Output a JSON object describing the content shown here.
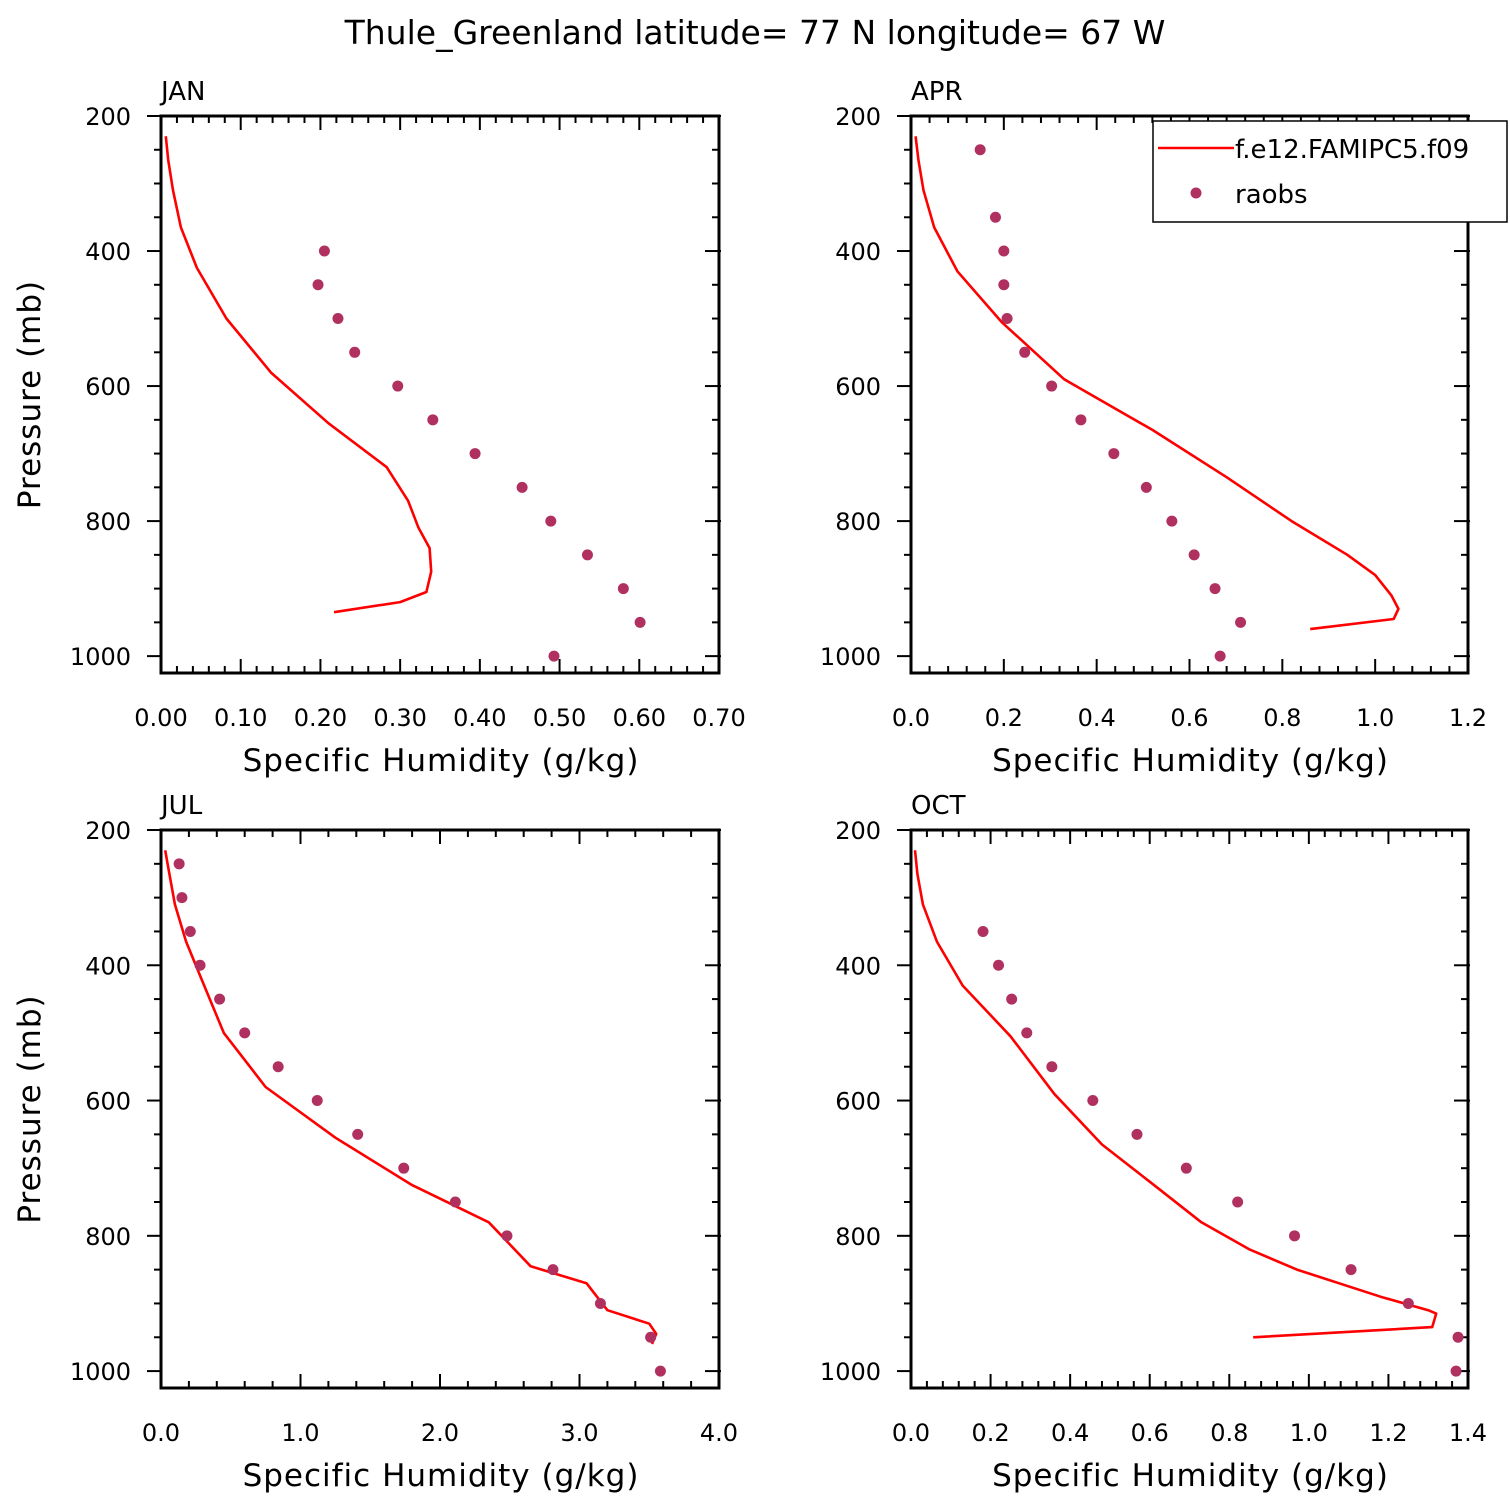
{
  "figure": {
    "title": "Thule_Greenland  latitude= 77 N longitude= 67 W",
    "legend": {
      "entries": [
        {
          "label": "f.e12.FAMIPC5.f09",
          "style": "line",
          "color": "#ff0000"
        },
        {
          "label": "raobs",
          "style": "dot",
          "color": "#b03060"
        }
      ]
    },
    "colors": {
      "model": "#ff0000",
      "obs": "#b03060",
      "axis": "#000000"
    }
  },
  "chart_data": [
    {
      "type": "line",
      "panel": "JAN",
      "title": "JAN",
      "xlabel": "Specific Humidity (g/kg)",
      "ylabel": "Pressure (mb)",
      "xlim": [
        0,
        0.7
      ],
      "ylim": [
        200,
        1025
      ],
      "y_inverted": true,
      "xticks": [
        0,
        0.1,
        0.2,
        0.3,
        0.4,
        0.5,
        0.6,
        0.7
      ],
      "xtick_labels": [
        "0.00",
        "0.10",
        "0.20",
        "0.30",
        "0.40",
        "0.50",
        "0.60",
        "0.70"
      ],
      "yticks": [
        200,
        400,
        600,
        800,
        1000
      ],
      "ytick_labels": [
        "200",
        "400",
        "600",
        "800",
        "1000"
      ],
      "series": [
        {
          "name": "f.e12.FAMIPC5.f09",
          "kind": "line",
          "x": [
            0.006,
            0.009,
            0.015,
            0.025,
            0.045,
            0.082,
            0.138,
            0.21,
            0.283,
            0.31,
            0.323,
            0.337,
            0.339,
            0.333,
            0.3,
            0.217
          ],
          "y": [
            230,
            265,
            310,
            365,
            425,
            500,
            580,
            655,
            720,
            770,
            810,
            840,
            875,
            905,
            920,
            935
          ]
        },
        {
          "name": "raobs",
          "kind": "scatter",
          "x": [
            0.205,
            0.197,
            0.222,
            0.243,
            0.297,
            0.341,
            0.394,
            0.453,
            0.489,
            0.535,
            0.58,
            0.601,
            0.493
          ],
          "y": [
            400,
            450,
            500,
            550,
            600,
            650,
            700,
            750,
            800,
            850,
            900,
            950,
            1000
          ]
        }
      ]
    },
    {
      "type": "line",
      "panel": "APR",
      "title": "APR",
      "xlabel": "Specific Humidity (g/kg)",
      "ylabel": "",
      "xlim": [
        0,
        1.2
      ],
      "ylim": [
        200,
        1025
      ],
      "y_inverted": true,
      "xticks": [
        0,
        0.2,
        0.4,
        0.6,
        0.8,
        1.0,
        1.2
      ],
      "xtick_labels": [
        "0.0",
        "0.2",
        "0.4",
        "0.6",
        "0.8",
        "1.0",
        "1.2"
      ],
      "yticks": [
        200,
        400,
        600,
        800,
        1000
      ],
      "ytick_labels": [
        "200",
        "400",
        "600",
        "800",
        "1000"
      ],
      "series": [
        {
          "name": "f.e12.FAMIPC5.f09",
          "kind": "line",
          "x": [
            0.01,
            0.016,
            0.027,
            0.05,
            0.1,
            0.195,
            0.33,
            0.52,
            0.68,
            0.82,
            0.94,
            1.0,
            1.035,
            1.05,
            1.04,
            0.86
          ],
          "y": [
            230,
            265,
            310,
            365,
            430,
            505,
            590,
            665,
            735,
            800,
            850,
            880,
            910,
            930,
            945,
            960
          ]
        },
        {
          "name": "raobs",
          "kind": "scatter",
          "x": [
            0.149,
            0.182,
            0.2,
            0.2,
            0.207,
            0.245,
            0.303,
            0.366,
            0.437,
            0.507,
            0.562,
            0.61,
            0.655,
            0.71,
            0.666
          ],
          "y": [
            250,
            350,
            400,
            450,
            500,
            550,
            600,
            650,
            700,
            750,
            800,
            850,
            900,
            950,
            1000
          ]
        }
      ]
    },
    {
      "type": "line",
      "panel": "JUL",
      "title": "JUL",
      "xlabel": "Specific Humidity (g/kg)",
      "ylabel": "Pressure (mb)",
      "xlim": [
        0,
        4.0
      ],
      "ylim": [
        200,
        1025
      ],
      "y_inverted": true,
      "xticks": [
        0,
        1,
        2,
        3,
        4
      ],
      "xtick_labels": [
        "0.0",
        "1.0",
        "2.0",
        "3.0",
        "4.0"
      ],
      "yticks": [
        200,
        400,
        600,
        800,
        1000
      ],
      "ytick_labels": [
        "200",
        "400",
        "600",
        "800",
        "1000"
      ],
      "series": [
        {
          "name": "f.e12.FAMIPC5.f09",
          "kind": "line",
          "x": [
            0.03,
            0.06,
            0.1,
            0.18,
            0.3,
            0.45,
            0.75,
            1.25,
            1.8,
            2.35,
            2.65,
            3.05,
            3.2,
            3.5,
            3.55,
            3.52
          ],
          "y": [
            230,
            265,
            310,
            365,
            425,
            500,
            580,
            655,
            725,
            780,
            845,
            870,
            910,
            930,
            945,
            960
          ]
        },
        {
          "name": "raobs",
          "kind": "scatter",
          "x": [
            0.13,
            0.15,
            0.21,
            0.28,
            0.42,
            0.6,
            0.84,
            1.12,
            1.41,
            1.74,
            2.11,
            2.48,
            2.81,
            3.15,
            3.51,
            3.58
          ],
          "y": [
            250,
            300,
            350,
            400,
            450,
            500,
            550,
            600,
            650,
            700,
            750,
            800,
            850,
            900,
            950,
            1000
          ]
        }
      ]
    },
    {
      "type": "line",
      "panel": "OCT",
      "title": "OCT",
      "xlabel": "Specific Humidity (g/kg)",
      "ylabel": "",
      "xlim": [
        0,
        1.4
      ],
      "ylim": [
        200,
        1025
      ],
      "y_inverted": true,
      "xticks": [
        0,
        0.2,
        0.4,
        0.6,
        0.8,
        1.0,
        1.2,
        1.4
      ],
      "xtick_labels": [
        "0.0",
        "0.2",
        "0.4",
        "0.6",
        "0.8",
        "1.0",
        "1.2",
        "1.4"
      ],
      "yticks": [
        200,
        400,
        600,
        800,
        1000
      ],
      "ytick_labels": [
        "200",
        "400",
        "600",
        "800",
        "1000"
      ],
      "series": [
        {
          "name": "f.e12.FAMIPC5.f09",
          "kind": "line",
          "x": [
            0.01,
            0.016,
            0.03,
            0.065,
            0.13,
            0.25,
            0.36,
            0.48,
            0.6,
            0.73,
            0.85,
            0.97,
            1.18,
            1.3,
            1.32,
            1.31,
            0.86
          ],
          "y": [
            230,
            265,
            310,
            365,
            430,
            505,
            590,
            665,
            720,
            780,
            820,
            850,
            890,
            910,
            915,
            935,
            950
          ]
        },
        {
          "name": "raobs",
          "kind": "scatter",
          "x": [
            0.181,
            0.22,
            0.253,
            0.291,
            0.354,
            0.457,
            0.568,
            0.692,
            0.821,
            0.964,
            1.106,
            1.25,
            1.375,
            1.37
          ],
          "y": [
            350,
            400,
            450,
            500,
            550,
            600,
            650,
            700,
            750,
            800,
            850,
            900,
            950,
            1000
          ]
        }
      ]
    }
  ]
}
